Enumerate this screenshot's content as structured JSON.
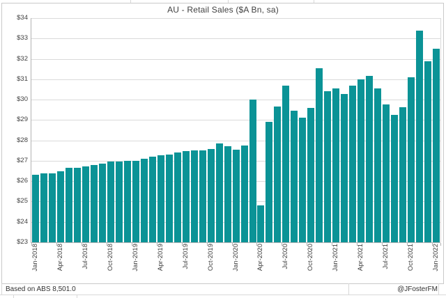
{
  "chart_data": {
    "type": "bar",
    "title": "AU - Retail Sales ($A Bn, sa)",
    "x": [
      "Jan-2018",
      "Feb-2018",
      "Mar-2018",
      "Apr-2018",
      "May-2018",
      "Jun-2018",
      "Jul-2018",
      "Aug-2018",
      "Sep-2018",
      "Oct-2018",
      "Nov-2018",
      "Dec-2018",
      "Jan-2019",
      "Feb-2019",
      "Mar-2019",
      "Apr-2019",
      "May-2019",
      "Jun-2019",
      "Jul-2019",
      "Aug-2019",
      "Sep-2019",
      "Oct-2019",
      "Nov-2019",
      "Dec-2019",
      "Jan-2020",
      "Feb-2020",
      "Mar-2020",
      "Apr-2020",
      "May-2020",
      "Jun-2020",
      "Jul-2020",
      "Aug-2020",
      "Sep-2020",
      "Oct-2020",
      "Nov-2020",
      "Dec-2020",
      "Jan-2021",
      "Feb-2021",
      "Mar-2021",
      "Apr-2021",
      "May-2021",
      "Jun-2021",
      "Jul-2021",
      "Aug-2021",
      "Sep-2021",
      "Oct-2021",
      "Nov-2021",
      "Dec-2021",
      "Jan-2022"
    ],
    "values": [
      26.3,
      26.4,
      26.38,
      26.5,
      26.65,
      26.64,
      26.72,
      26.8,
      26.85,
      26.95,
      26.96,
      27.0,
      27.0,
      27.1,
      27.2,
      27.26,
      27.32,
      27.4,
      27.46,
      27.5,
      27.52,
      27.58,
      27.85,
      27.7,
      27.55,
      27.74,
      30.0,
      24.8,
      28.9,
      29.68,
      30.7,
      29.46,
      29.1,
      29.58,
      31.55,
      30.42,
      30.55,
      30.28,
      30.7,
      31.0,
      31.15,
      30.55,
      29.75,
      29.25,
      29.62,
      31.1,
      33.4,
      31.9,
      32.5
    ],
    "xlabel": "",
    "ylabel": "",
    "ylim": [
      23,
      34
    ],
    "y_tick_step": 1,
    "y_tick_prefix": "$",
    "x_tick_interval": 3,
    "grid": true,
    "legend": "none",
    "bar_color": "#0b9396"
  },
  "footer": {
    "source_note": "Based on ABS 8,501.0",
    "author_handle": "@JFosterFM"
  },
  "colors": {
    "bar": "#0b9396",
    "gridline": "#dadada",
    "axis_line": "#b3b3b3",
    "chart_border": "#c9c9c9",
    "text": "#404040",
    "background": "#ffffff"
  }
}
